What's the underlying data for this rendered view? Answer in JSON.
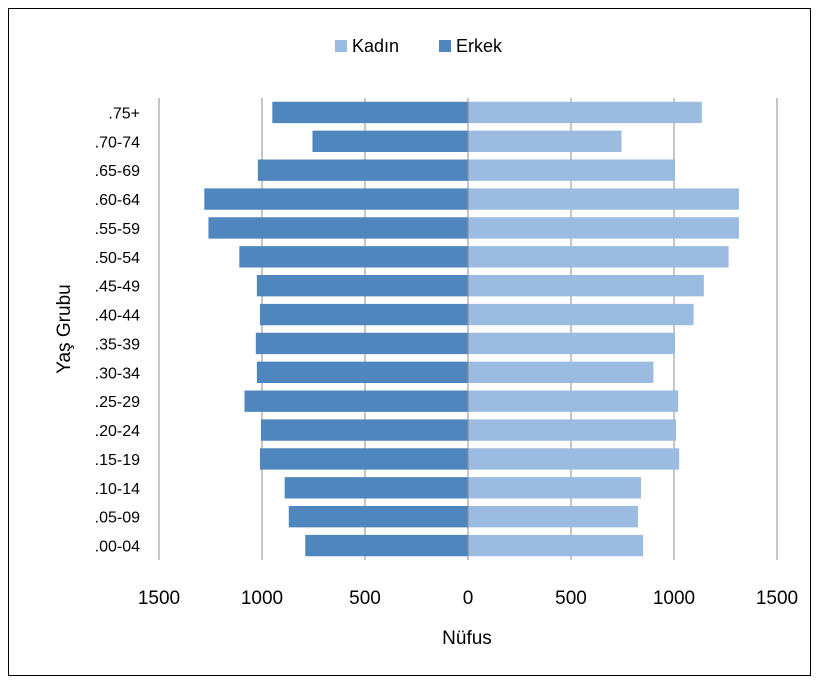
{
  "chart_data": {
    "type": "bar",
    "orientation": "horizontal",
    "layout": "population-pyramid",
    "title": "",
    "xlabel": "Nüfus",
    "ylabel": "Yaş Grubu",
    "xlim": [
      -1500,
      1500
    ],
    "x_ticks": [
      -1500,
      -1000,
      -500,
      0,
      500,
      1000,
      1500
    ],
    "x_tick_labels": [
      "1500",
      "1000",
      "500",
      "0",
      "500",
      "1000",
      "1500"
    ],
    "categories": [
      ".00-04",
      ".05-09",
      ".10-14",
      ".15-19",
      ".20-24",
      ".25-29",
      ".30-34",
      ".35-39",
      ".40-44",
      ".45-49",
      ".50-54",
      ".55-59",
      ".60-64",
      ".65-69",
      ".70-74",
      ".75+"
    ],
    "series": [
      {
        "name": "Kadın",
        "color": "#9BBBE0",
        "values": [
          850,
          825,
          840,
          1025,
          1010,
          1020,
          900,
          1005,
          1095,
          1145,
          1265,
          1315,
          1315,
          1005,
          745,
          1135
        ]
      },
      {
        "name": "Erkek",
        "color": "#4F86BE",
        "values": [
          -790,
          -870,
          -890,
          -1010,
          -1005,
          -1085,
          -1025,
          -1030,
          -1010,
          -1025,
          -1110,
          -1260,
          -1280,
          -1020,
          -755,
          -950
        ]
      }
    ],
    "grid": {
      "vertical": true,
      "horizontal": false
    },
    "legend_position": "top-center"
  }
}
